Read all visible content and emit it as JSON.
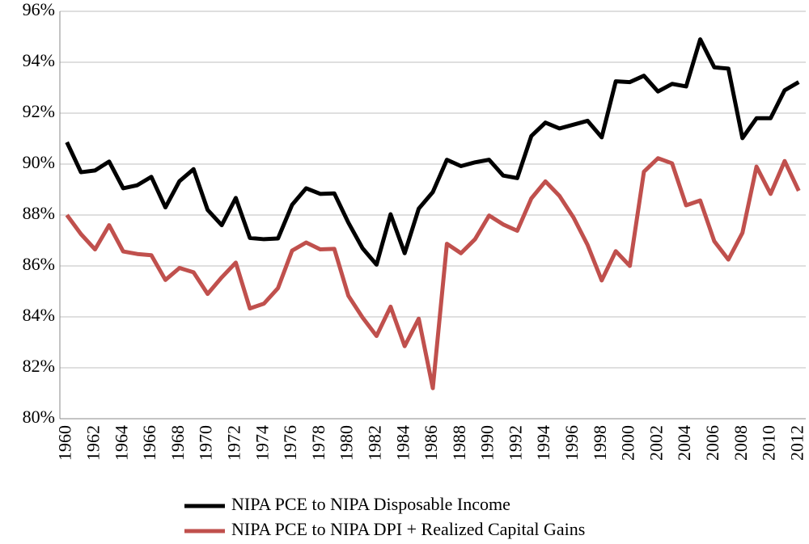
{
  "chart_data": {
    "type": "line",
    "categories": [
      "1960",
      null,
      "1962",
      null,
      "1964",
      null,
      "1966",
      null,
      "1968",
      null,
      "1970",
      null,
      "1972",
      null,
      "1974",
      null,
      "1976",
      null,
      "1978",
      null,
      "1980",
      null,
      "1982",
      null,
      "1984",
      null,
      "1986",
      null,
      "1988",
      null,
      "1990",
      null,
      "1992",
      null,
      "1994",
      null,
      "1996",
      null,
      "1998",
      null,
      "2000",
      null,
      "2002",
      null,
      "2004",
      null,
      "2006",
      null,
      "2008",
      null,
      "2010",
      null,
      "2012"
    ],
    "series": [
      {
        "name": "NIPA PCE to NIPA Disposable Income",
        "color": "#000000",
        "values": [
          90.86,
          89.68,
          89.75,
          90.1,
          89.05,
          89.17,
          89.5,
          88.3,
          89.33,
          89.8,
          88.2,
          87.6,
          88.67,
          87.1,
          87.05,
          87.08,
          88.4,
          89.05,
          88.83,
          88.85,
          87.7,
          86.7,
          86.05,
          88.03,
          86.5,
          88.25,
          88.9,
          90.17,
          89.92,
          90.07,
          90.17,
          89.55,
          89.45,
          91.1,
          91.63,
          91.4,
          91.55,
          91.7,
          91.05,
          93.25,
          93.22,
          93.47,
          92.85,
          93.15,
          93.05,
          94.9,
          93.8,
          93.75,
          91.02,
          91.8,
          91.8,
          92.9,
          93.22
        ]
      },
      {
        "name": "NIPA PCE to NIPA DPI + Realized Capital Gains",
        "color": "#c0504d",
        "values": [
          88.0,
          87.25,
          86.65,
          87.6,
          86.57,
          86.47,
          86.42,
          85.45,
          85.92,
          85.75,
          84.9,
          85.55,
          86.13,
          84.33,
          84.52,
          85.13,
          86.6,
          86.92,
          86.65,
          86.67,
          84.83,
          83.98,
          83.25,
          84.4,
          82.85,
          83.93,
          81.2,
          86.87,
          86.5,
          87.05,
          87.98,
          87.63,
          87.38,
          88.65,
          89.32,
          88.75,
          87.9,
          86.82,
          85.43,
          86.58,
          86.0,
          89.7,
          90.23,
          90.03,
          88.38,
          88.57,
          86.97,
          86.25,
          87.3,
          89.9,
          88.83,
          90.12,
          88.95
        ]
      }
    ],
    "ylim": [
      80,
      96
    ],
    "yticks": [
      {
        "value": 80,
        "label": "80%"
      },
      {
        "value": 82,
        "label": "82%"
      },
      {
        "value": 84,
        "label": "84%"
      },
      {
        "value": 86,
        "label": "86%"
      },
      {
        "value": 88,
        "label": "88%"
      },
      {
        "value": 90,
        "label": "90%"
      },
      {
        "value": 92,
        "label": "92%"
      },
      {
        "value": 94,
        "label": "94%"
      },
      {
        "value": 96,
        "label": "96%"
      }
    ],
    "grid": true,
    "legend": "bottom"
  }
}
